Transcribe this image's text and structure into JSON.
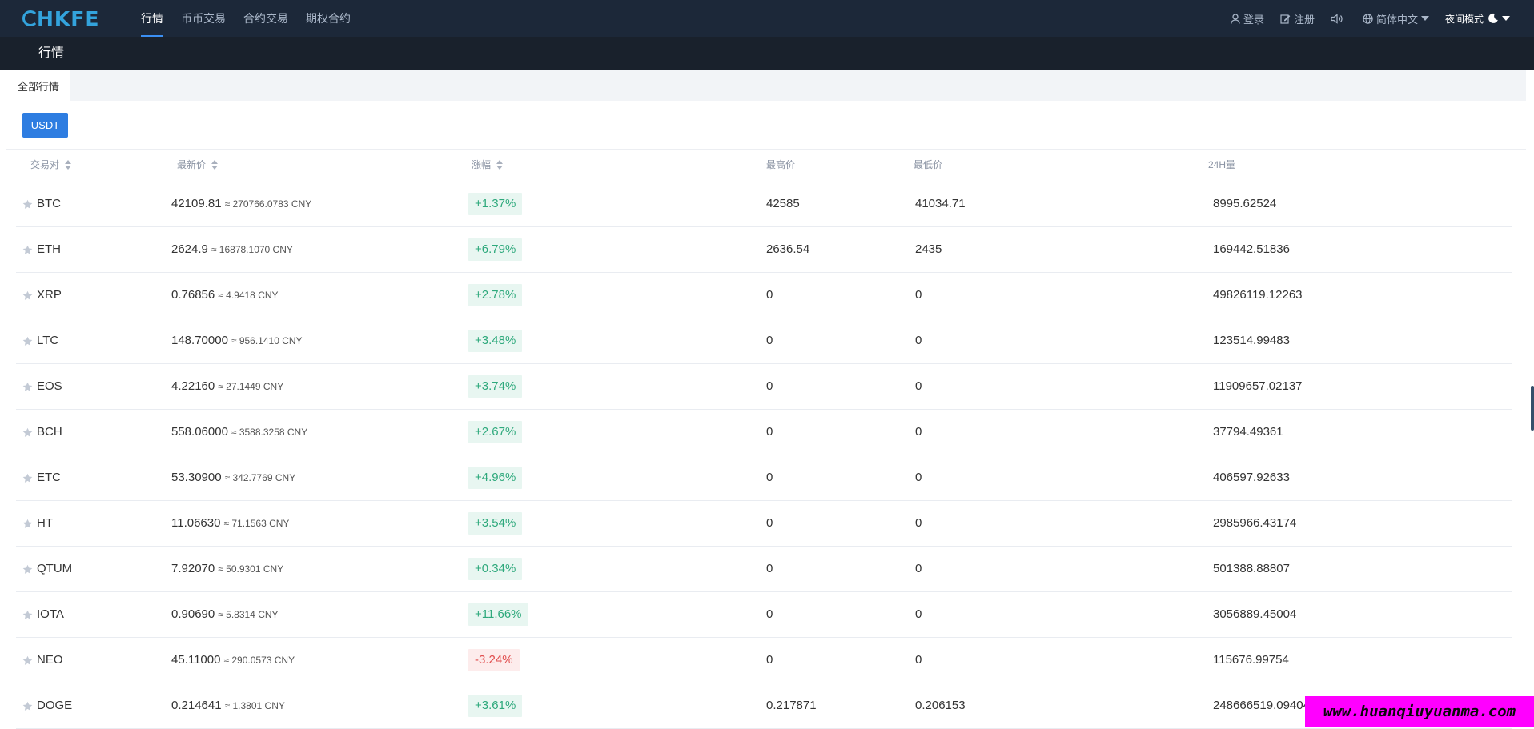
{
  "logo": {
    "text": "HKFE"
  },
  "nav": {
    "items": [
      "行情",
      "币币交易",
      "合约交易",
      "期权合约"
    ],
    "active_index": 0
  },
  "nav_right": {
    "login": "登录",
    "register": "注册",
    "language": "简体中文",
    "night_mode": "夜间模式"
  },
  "page": {
    "title": "行情",
    "tab": "全部行情",
    "quote_button": "USDT"
  },
  "table": {
    "headers": {
      "pair": "交易对",
      "last_price": "最新价",
      "change": "涨幅",
      "high": "最高价",
      "low": "最低价",
      "volume": "24H量"
    },
    "rows": [
      {
        "pair": "BTC",
        "price": "42109.81",
        "cny": "≈ 270766.0783 CNY",
        "change": "+1.37%",
        "dir": "up",
        "high": "42585",
        "low": "41034.71",
        "volume": "8995.62524"
      },
      {
        "pair": "ETH",
        "price": "2624.9",
        "cny": "≈ 16878.1070 CNY",
        "change": "+6.79%",
        "dir": "up",
        "high": "2636.54",
        "low": "2435",
        "volume": "169442.51836"
      },
      {
        "pair": "XRP",
        "price": "0.76856",
        "cny": "≈ 4.9418 CNY",
        "change": "+2.78%",
        "dir": "up",
        "high": "0",
        "low": "0",
        "volume": "49826119.12263"
      },
      {
        "pair": "LTC",
        "price": "148.70000",
        "cny": "≈ 956.1410 CNY",
        "change": "+3.48%",
        "dir": "up",
        "high": "0",
        "low": "0",
        "volume": "123514.99483"
      },
      {
        "pair": "EOS",
        "price": "4.22160",
        "cny": "≈ 27.1449 CNY",
        "change": "+3.74%",
        "dir": "up",
        "high": "0",
        "low": "0",
        "volume": "11909657.02137"
      },
      {
        "pair": "BCH",
        "price": "558.06000",
        "cny": "≈ 3588.3258 CNY",
        "change": "+2.67%",
        "dir": "up",
        "high": "0",
        "low": "0",
        "volume": "37794.49361"
      },
      {
        "pair": "ETC",
        "price": "53.30900",
        "cny": "≈ 342.7769 CNY",
        "change": "+4.96%",
        "dir": "up",
        "high": "0",
        "low": "0",
        "volume": "406597.92633"
      },
      {
        "pair": "HT",
        "price": "11.06630",
        "cny": "≈ 71.1563 CNY",
        "change": "+3.54%",
        "dir": "up",
        "high": "0",
        "low": "0",
        "volume": "2985966.43174"
      },
      {
        "pair": "QTUM",
        "price": "7.92070",
        "cny": "≈ 50.9301 CNY",
        "change": "+0.34%",
        "dir": "up",
        "high": "0",
        "low": "0",
        "volume": "501388.88807"
      },
      {
        "pair": "IOTA",
        "price": "0.90690",
        "cny": "≈ 5.8314 CNY",
        "change": "+11.66%",
        "dir": "up",
        "high": "0",
        "low": "0",
        "volume": "3056889.45004"
      },
      {
        "pair": "NEO",
        "price": "45.11000",
        "cny": "≈ 290.0573 CNY",
        "change": "-3.24%",
        "dir": "down",
        "high": "0",
        "low": "0",
        "volume": "115676.99754"
      },
      {
        "pair": "DOGE",
        "price": "0.214641",
        "cny": "≈ 1.3801 CNY",
        "change": "+3.61%",
        "dir": "up",
        "high": "0.217871",
        "low": "0.206153",
        "volume": "248666519.09404"
      }
    ]
  },
  "watermark": "www.huanqiuyuanma.com",
  "colors": {
    "nav_bg": "#1c2839",
    "accent": "#2e7de1",
    "up": "#2ea97c",
    "down": "#e04b4b"
  }
}
